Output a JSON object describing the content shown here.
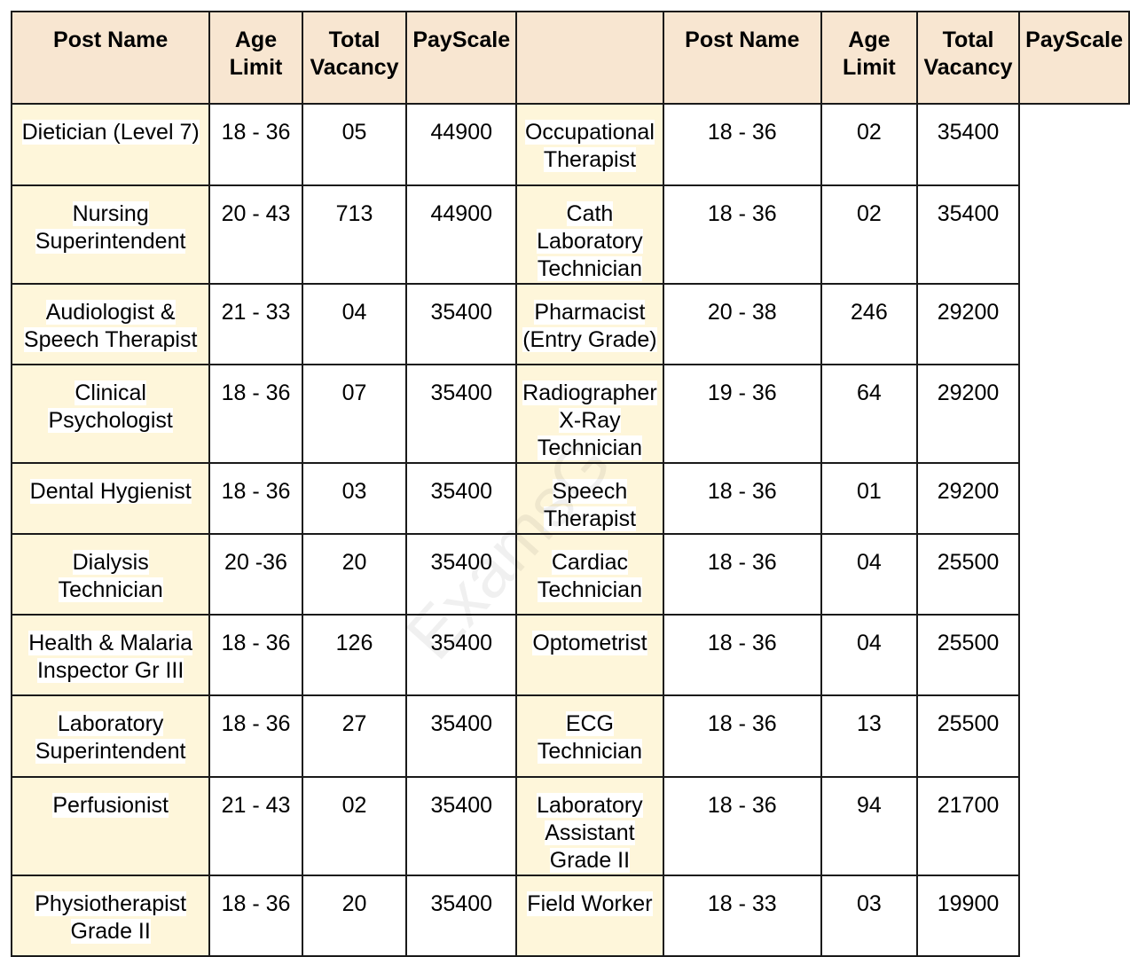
{
  "headers": {
    "post_name": "Post Name",
    "age_limit": "Age Limit",
    "total_vacancy_left": "Total Vacancy",
    "payscale_left": "PayScale",
    "total_vacancy_right": "Total Vacancy",
    "payscale_right": "PayScale"
  },
  "rows": [
    {
      "left": {
        "name": "Dietician (Level 7)",
        "age": "18 - 36",
        "vacancy": "05",
        "pay": "44900"
      },
      "right": {
        "name": "Occupational Therapist",
        "age": "18 - 36",
        "vacancy": "02",
        "pay": "35400"
      }
    },
    {
      "left": {
        "name": "Nursing Superintendent",
        "age": "20 - 43",
        "vacancy": "713",
        "pay": "44900"
      },
      "right": {
        "name": "Cath Laboratory Technician",
        "age": "18 - 36",
        "vacancy": "02",
        "pay": "35400"
      }
    },
    {
      "left": {
        "name": "Audiologist & Speech Therapist",
        "age": "21 - 33",
        "vacancy": "04",
        "pay": "35400"
      },
      "right": {
        "name": "Pharmacist (Entry Grade)",
        "age": "20 - 38",
        "vacancy": "246",
        "pay": "29200"
      }
    },
    {
      "left": {
        "name": "Clinical Psychologist",
        "age": "18 - 36",
        "vacancy": "07",
        "pay": "35400"
      },
      "right": {
        "name": "Radiographer X-Ray Technician",
        "age": "19 - 36",
        "vacancy": "64",
        "pay": "29200"
      }
    },
    {
      "left": {
        "name": "Dental Hygienist",
        "age": "18 - 36",
        "vacancy": "03",
        "pay": "35400"
      },
      "right": {
        "name": "Speech Therapist",
        "age": "18 - 36",
        "vacancy": "01",
        "pay": "29200"
      }
    },
    {
      "left": {
        "name": "Dialysis Technician",
        "age": "20 -36",
        "vacancy": "20",
        "pay": "35400"
      },
      "right": {
        "name": "Cardiac Technician",
        "age": "18 - 36",
        "vacancy": "04",
        "pay": "25500"
      }
    },
    {
      "left": {
        "name": "Health & Malaria Inspector Gr III",
        "age": "18 - 36",
        "vacancy": "126",
        "pay": "35400"
      },
      "right": {
        "name": "Optometrist",
        "age": "18 - 36",
        "vacancy": "04",
        "pay": "25500"
      }
    },
    {
      "left": {
        "name": "Laboratory Superintendent",
        "age": "18 - 36",
        "vacancy": "27",
        "pay": "35400"
      },
      "right": {
        "name": "ECG Technician",
        "age": "18 - 36",
        "vacancy": "13",
        "pay": "25500"
      }
    },
    {
      "left": {
        "name": "Perfusionist",
        "age": "21 - 43",
        "vacancy": "02",
        "pay": "35400"
      },
      "right": {
        "name": "Laboratory Assistant Grade II",
        "age": "18 - 36",
        "vacancy": "94",
        "pay": "21700"
      }
    },
    {
      "left": {
        "name": "Physiotherapist Grade II",
        "age": "18 - 36",
        "vacancy": "20",
        "pay": "35400"
      },
      "right": {
        "name": "Field Worker",
        "age": "18 - 33",
        "vacancy": "03",
        "pay": "19900"
      }
    }
  ]
}
